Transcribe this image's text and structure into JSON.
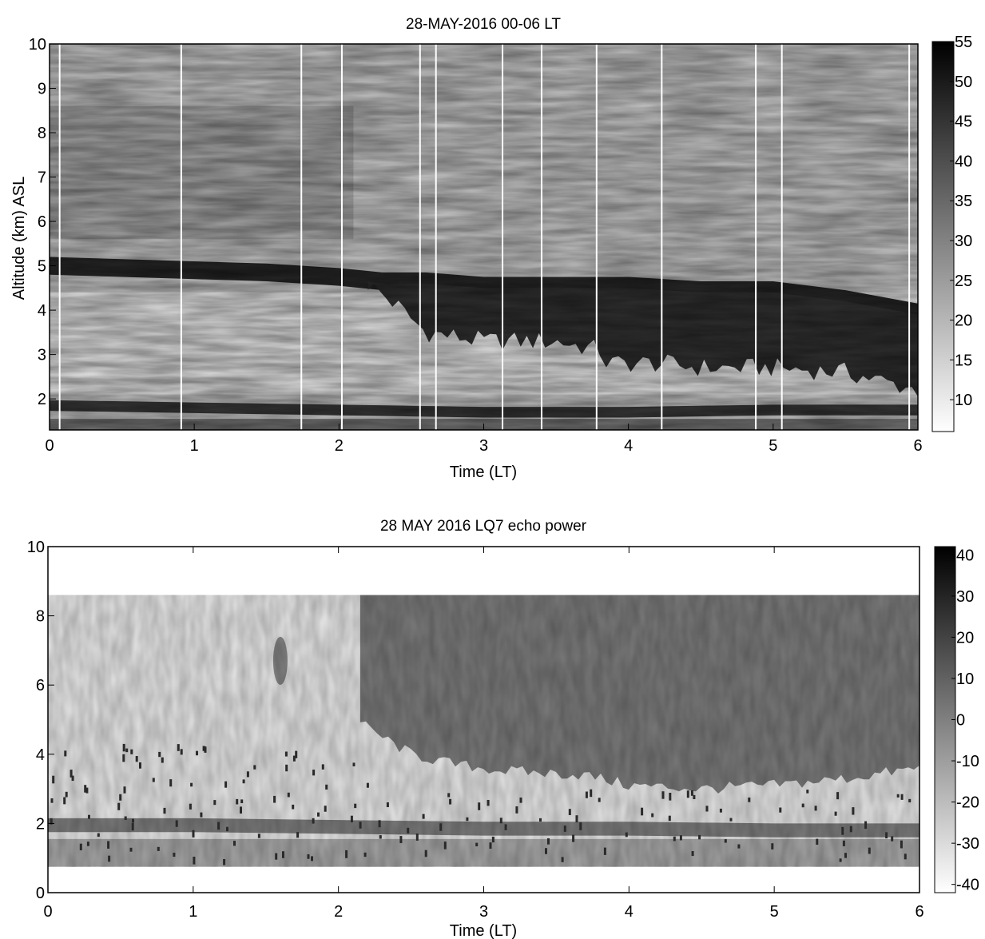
{
  "chart_data": [
    {
      "type": "heatmap",
      "title": "28-MAY-2016 00-06 LT",
      "xlabel": "Time (LT)",
      "ylabel": "Altitude (km) ASL",
      "xlim": [
        0,
        6
      ],
      "ylim": [
        1.3,
        10
      ],
      "x_ticks": [
        0,
        1,
        2,
        3,
        4,
        5,
        6
      ],
      "y_ticks": [
        2,
        3,
        4,
        5,
        6,
        7,
        8,
        9,
        10
      ],
      "colormap": "gray_reversed",
      "colorbar": {
        "range": [
          6,
          55
        ],
        "ticks": [
          10,
          15,
          20,
          25,
          30,
          35,
          40,
          45,
          50,
          55
        ]
      },
      "data_gaps_x": [
        0.07,
        0.91,
        1.74,
        2.02,
        2.56,
        2.67,
        3.13,
        3.4,
        3.78,
        4.23,
        4.88,
        5.06,
        5.94
      ],
      "features": {
        "melting_layer_top": [
          [
            0,
            4.95
          ],
          [
            0.5,
            4.9
          ],
          [
            1.0,
            4.85
          ],
          [
            1.5,
            4.8
          ],
          [
            2.0,
            4.7
          ],
          [
            2.3,
            4.6
          ],
          [
            2.6,
            4.6
          ],
          [
            3.0,
            4.5
          ],
          [
            3.5,
            4.5
          ],
          [
            4.0,
            4.5
          ],
          [
            4.5,
            4.4
          ],
          [
            5.0,
            4.4
          ],
          [
            5.5,
            4.2
          ],
          [
            6.0,
            3.9
          ]
        ],
        "precip_bottom": [
          [
            2.2,
            4.6
          ],
          [
            2.4,
            4.1
          ],
          [
            2.6,
            3.5
          ],
          [
            3.0,
            3.3
          ],
          [
            3.5,
            3.3
          ],
          [
            3.8,
            3.1
          ],
          [
            3.85,
            2.8
          ],
          [
            4.2,
            2.8
          ],
          [
            4.5,
            2.7
          ],
          [
            5.0,
            2.7
          ],
          [
            5.5,
            2.6
          ],
          [
            6.0,
            2.2
          ]
        ],
        "low_layer": [
          [
            0,
            1.85
          ],
          [
            1.0,
            1.8
          ],
          [
            2.0,
            1.75
          ],
          [
            3.0,
            1.7
          ],
          [
            4.0,
            1.7
          ],
          [
            5.0,
            1.75
          ],
          [
            6.0,
            1.75
          ]
        ]
      }
    },
    {
      "type": "heatmap",
      "title": "28 MAY 2016 LQ7 echo power",
      "xlabel": "Time (LT)",
      "ylabel": "",
      "xlim": [
        0,
        6
      ],
      "ylim": [
        0,
        10
      ],
      "x_ticks": [
        0,
        1,
        2,
        3,
        4,
        5,
        6
      ],
      "y_ticks": [
        0,
        2,
        4,
        6,
        8,
        10
      ],
      "data_altitude_range": [
        0.75,
        8.6
      ],
      "colormap": "gray_reversed",
      "colorbar": {
        "range": [
          -42,
          42
        ],
        "ticks": [
          -40,
          -30,
          -20,
          -10,
          0,
          10,
          20,
          30,
          40
        ]
      },
      "features": {
        "precip_bottom": [
          [
            2.15,
            4.9
          ],
          [
            2.3,
            4.5
          ],
          [
            2.5,
            4.0
          ],
          [
            2.8,
            3.7
          ],
          [
            3.2,
            3.5
          ],
          [
            3.7,
            3.4
          ],
          [
            4.0,
            3.1
          ],
          [
            4.5,
            3.0
          ],
          [
            5.0,
            3.1
          ],
          [
            5.5,
            3.3
          ],
          [
            6.0,
            3.6
          ]
        ],
        "low_layer": [
          [
            0,
            2.0
          ],
          [
            1.0,
            2.0
          ],
          [
            2.0,
            1.95
          ],
          [
            3.0,
            1.9
          ],
          [
            4.0,
            1.9
          ],
          [
            5.0,
            1.85
          ],
          [
            6.0,
            1.85
          ]
        ]
      }
    }
  ]
}
